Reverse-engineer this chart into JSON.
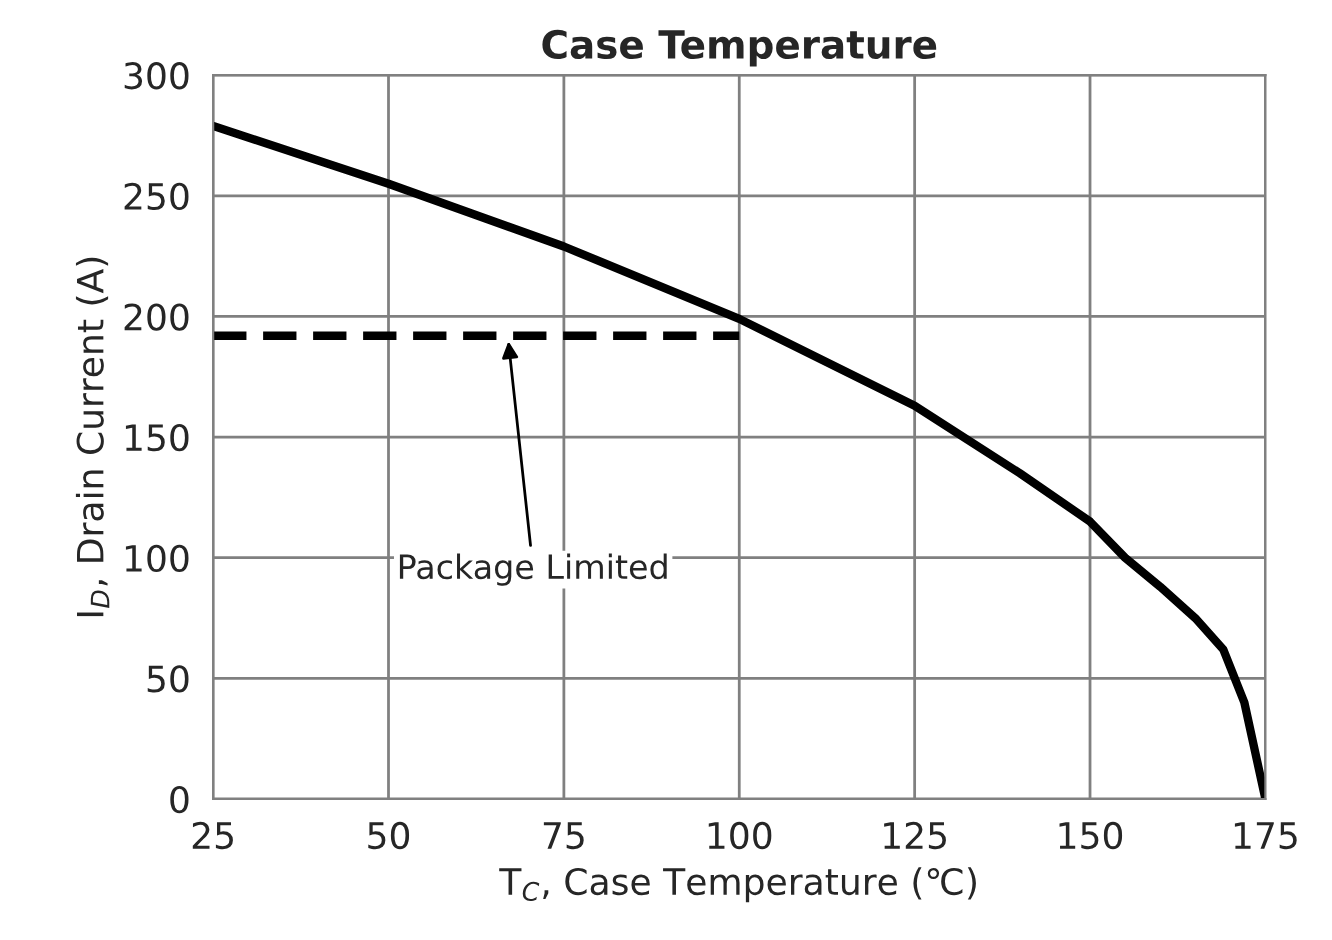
{
  "chart_data": {
    "type": "line",
    "title": "Case Temperature",
    "xlabel": "T$_{C}$, Case Temperature (℃)",
    "ylabel": "I$_{D}$, Drain Current (A)",
    "series": [
      {
        "color": "#000000",
        "line_style": "solid",
        "x": [
          25,
          50,
          75,
          100,
          125,
          140,
          150,
          155,
          160,
          165,
          169,
          172,
          175
        ],
        "values": [
          279,
          255,
          229,
          199,
          163,
          135,
          115,
          100,
          88,
          75,
          62,
          40,
          0
        ]
      },
      {
        "color": "#000000",
        "line_style": "dashed",
        "x": [
          25,
          100
        ],
        "values": [
          192,
          192
        ]
      }
    ],
    "annotations": [
      {
        "text": "Package Limited",
        "x": 67,
        "y": 192
      }
    ],
    "xlim": [
      25,
      175
    ],
    "ylim": [
      0,
      300
    ],
    "xticks": [
      25,
      50,
      75,
      100,
      125,
      150,
      175
    ],
    "yticks": [
      0,
      50,
      100,
      150,
      200,
      250,
      300
    ],
    "grid": true,
    "marker": "none"
  }
}
